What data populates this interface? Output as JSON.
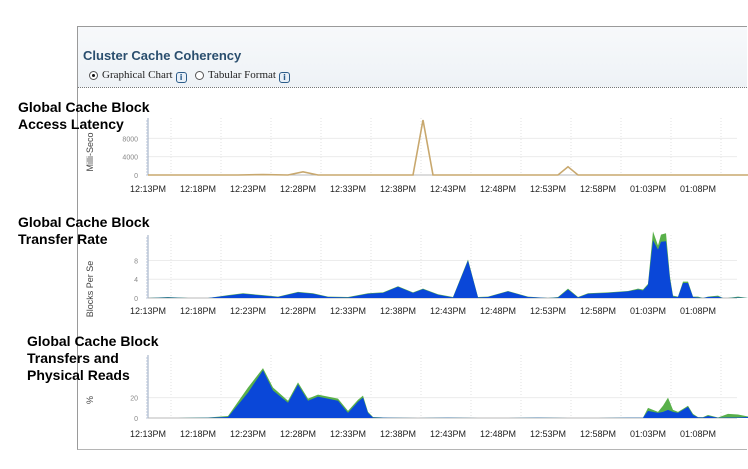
{
  "region": {
    "title": "Cluster Cache Coherency",
    "view_options": [
      {
        "label": "Graphical Chart",
        "selected": true
      },
      {
        "label": "Tabular Format",
        "selected": false
      }
    ]
  },
  "charts": [
    {
      "title_lines": [
        "Global Cache Block",
        "Access Latency"
      ]
    },
    {
      "title_lines": [
        "Global Cache Block",
        "Transfer Rate"
      ]
    },
    {
      "title_lines": [
        "Global Cache Block",
        "Transfers and",
        "Physical Reads"
      ]
    }
  ],
  "chart_data": [
    {
      "type": "line",
      "title": "Global Cache Block Access Latency",
      "ylabel": "Milli-Seco",
      "y_ticks": [
        "0",
        "4000",
        "8000"
      ],
      "ylim": [
        0,
        12000
      ],
      "x_tick_labels": [
        "12:13PM",
        "12:18PM",
        "12:23PM",
        "12:28PM",
        "12:33PM",
        "12:38PM",
        "12:43PM",
        "12:48PM",
        "12:53PM",
        "12:58PM",
        "01:03PM",
        "01:08PM"
      ],
      "x_minutes": [
        0,
        5,
        10,
        15,
        20,
        25,
        30,
        35,
        40,
        45,
        50,
        55
      ],
      "color": "#c8a86e",
      "series": [
        {
          "x": [
            0,
            3,
            6,
            9,
            11.5,
            14,
            15.5,
            17,
            20,
            23,
            25.5,
            26.5,
            27.5,
            28.5,
            30,
            33,
            36,
            39,
            41,
            42,
            43,
            45,
            48,
            51,
            54,
            57,
            60.5
          ],
          "y": [
            0,
            0,
            0,
            0,
            100,
            0,
            700,
            0,
            0,
            0,
            0,
            0,
            12000,
            0,
            0,
            0,
            0,
            0,
            0,
            1800,
            0,
            0,
            0,
            0,
            0,
            0,
            0
          ]
        }
      ]
    },
    {
      "type": "area",
      "title": "Global Cache Block Transfer Rate",
      "ylabel": "Blocks Per Se",
      "y_ticks": [
        "0",
        "4",
        "8"
      ],
      "ylim": [
        0,
        13
      ],
      "x_tick_labels": [
        "12:13PM",
        "12:18PM",
        "12:23PM",
        "12:28PM",
        "12:33PM",
        "12:38PM",
        "12:43PM",
        "12:48PM",
        "12:53PM",
        "12:58PM",
        "01:03PM",
        "01:08PM"
      ],
      "x_minutes": [
        0,
        5,
        10,
        15,
        20,
        25,
        30,
        35,
        40,
        45,
        50,
        55
      ],
      "series": [
        {
          "name": "",
          "color": "#59b04a",
          "x": [
            0,
            2,
            4,
            6,
            8,
            9.5,
            11.5,
            13,
            15,
            16.5,
            18,
            20,
            22,
            23.5,
            25,
            26.5,
            27.5,
            29,
            30.5,
            32,
            33,
            34,
            36,
            38,
            40,
            41,
            42,
            43,
            44,
            46,
            48,
            49,
            49.5,
            50,
            50.5,
            51,
            51.3,
            51.8,
            52.2,
            52.5,
            53,
            53.5,
            54,
            54.5,
            55,
            55.5,
            56,
            57,
            57.5,
            58,
            59,
            60,
            60.5
          ],
          "y": [
            0,
            0.2,
            0,
            0,
            0.6,
            1,
            0.6,
            0.3,
            1.3,
            1,
            0.3,
            0.2,
            1,
            1.2,
            2.5,
            1.2,
            2,
            0.8,
            0.2,
            8.2,
            0.2,
            0.3,
            1.5,
            0.3,
            0,
            0.2,
            2,
            0.2,
            1,
            1.2,
            1.5,
            2,
            1.8,
            3,
            14.2,
            11.2,
            13.5,
            13.8,
            4.5,
            0.5,
            0.3,
            3.5,
            3.5,
            0.3,
            0.3,
            0,
            0.3,
            0.5,
            0,
            0,
            0.3,
            0,
            0
          ]
        },
        {
          "name": "",
          "color": "#0a47d8",
          "x": [
            0,
            2,
            4,
            6,
            8,
            9.5,
            11.5,
            13,
            15,
            16.5,
            18,
            20,
            22,
            23.5,
            25,
            26.5,
            27.5,
            29,
            30.5,
            32,
            33,
            34,
            36,
            38,
            40,
            41,
            42,
            43,
            44,
            46,
            48,
            49,
            49.5,
            50,
            50.5,
            51,
            51.3,
            51.8,
            52.2,
            52.5,
            53,
            53.5,
            54,
            54.5,
            55,
            55.5,
            56,
            57,
            57.5,
            58,
            59,
            60,
            60.5
          ],
          "y": [
            0,
            0.1,
            0,
            0,
            0.5,
            0.9,
            0.5,
            0.2,
            1.2,
            0.9,
            0.2,
            0.1,
            0.9,
            1.1,
            2.4,
            1.1,
            1.9,
            0.7,
            0.1,
            8,
            0.1,
            0.2,
            1.4,
            0.2,
            0,
            0.1,
            1.8,
            0.1,
            0.9,
            1.1,
            1.4,
            1.8,
            1.6,
            2.8,
            12.3,
            10.3,
            12,
            12.1,
            4,
            0.3,
            0.2,
            3.2,
            3.2,
            0.2,
            0.1,
            0,
            0.2,
            0.3,
            0,
            0,
            0.1,
            0,
            0
          ]
        }
      ]
    },
    {
      "type": "area",
      "title": "Global Cache Block Transfers and Physical Reads",
      "ylabel": "%",
      "y_ticks": [
        "0",
        "20"
      ],
      "ylim": [
        0,
        60
      ],
      "x_tick_labels": [
        "12:13PM",
        "12:18PM",
        "12:23PM",
        "12:28PM",
        "12:33PM",
        "12:38PM",
        "12:43PM",
        "12:48PM",
        "12:53PM",
        "12:58PM",
        "01:03PM",
        "01:08PM"
      ],
      "x_minutes": [
        0,
        5,
        10,
        15,
        20,
        25,
        30,
        35,
        40,
        45,
        50,
        55
      ],
      "series": [
        {
          "name": "",
          "color": "#59b04a",
          "x": [
            0,
            3,
            6,
            8,
            10,
            11.5,
            12.5,
            14,
            15,
            16,
            17,
            19,
            20,
            21,
            21.5,
            22,
            22.5,
            24,
            27,
            30,
            33,
            36,
            39,
            42,
            45,
            48,
            49.5,
            50,
            51,
            51.5,
            52,
            52.5,
            53,
            53.5,
            54,
            54.5,
            55,
            55.5,
            56,
            57,
            58,
            59,
            60,
            60.5
          ],
          "y": [
            0,
            0,
            0.5,
            2,
            30,
            49,
            30,
            17,
            35,
            19,
            23,
            19,
            7,
            18,
            22,
            6,
            1,
            0.3,
            0,
            0.3,
            0,
            0,
            0.3,
            0,
            0,
            0.3,
            0.3,
            10,
            6,
            12,
            20,
            8,
            6,
            9,
            12,
            4,
            0.8,
            0.8,
            3,
            0.5,
            4,
            3.5,
            1.5,
            1
          ]
        },
        {
          "name": "",
          "color": "#0a47d8",
          "x": [
            0,
            3,
            6,
            8,
            10,
            11.5,
            12.5,
            14,
            15,
            16,
            17,
            19,
            20,
            21,
            21.5,
            22,
            22.5,
            24,
            27,
            30,
            33,
            36,
            39,
            42,
            45,
            48,
            49.5,
            50,
            51,
            51.5,
            52,
            52.5,
            53,
            53.5,
            54,
            54.5,
            55,
            55.5,
            56,
            57,
            58,
            59,
            60,
            60.5
          ],
          "y": [
            0,
            0,
            0.3,
            1,
            25,
            47,
            27,
            15,
            33,
            17,
            21,
            17,
            5,
            16,
            20,
            5,
            0.5,
            0.2,
            0,
            0.2,
            0,
            0,
            0.2,
            0,
            0,
            0.2,
            0.2,
            7,
            5,
            6,
            8,
            6,
            5,
            8,
            11,
            3,
            0.6,
            0.5,
            2,
            0.3,
            0.5,
            0.5,
            1,
            0.8
          ]
        }
      ]
    }
  ]
}
